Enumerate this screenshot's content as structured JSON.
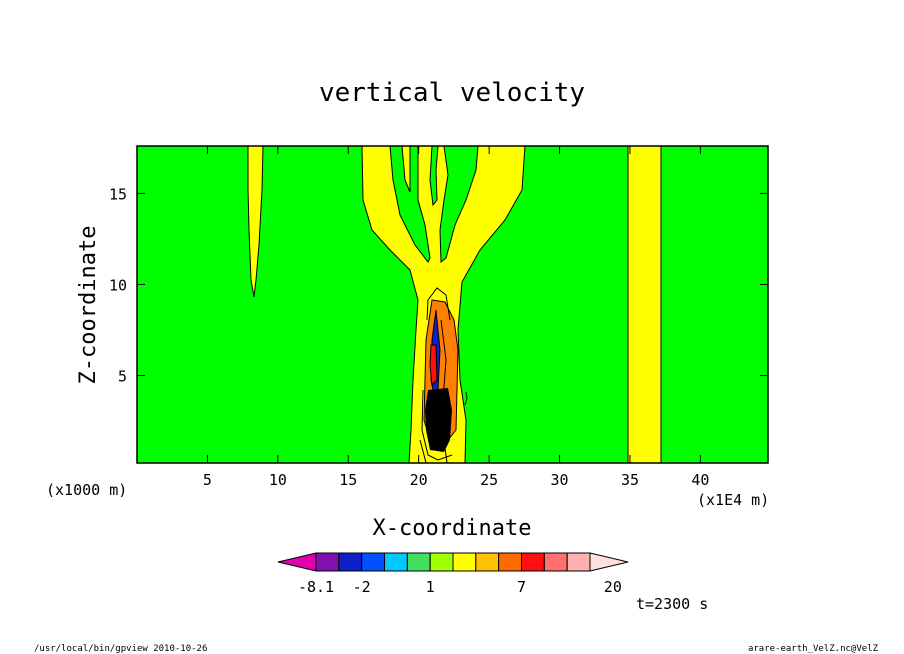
{
  "chart_data": {
    "type": "heatmap",
    "title": "vertical velocity",
    "xlabel": "X-coordinate",
    "ylabel": "Z-coordinate",
    "x_unit_label": "(x1E4 m)",
    "y_unit_label": "(x1000 m)",
    "x_ticks": [
      5,
      10,
      15,
      20,
      25,
      30,
      35,
      40
    ],
    "y_ticks": [
      5,
      10,
      15
    ],
    "xlim": [
      0,
      44.8
    ],
    "ylim": [
      0.2,
      17.6
    ],
    "time_label": "t=2300 s",
    "colorbar": {
      "labels": [
        {
          "text": "-8.1",
          "index": 1
        },
        {
          "text": "-2",
          "index": 3
        },
        {
          "text": "1",
          "index": 6
        },
        {
          "text": "7",
          "index": 10
        },
        {
          "text": "20",
          "index": 14
        }
      ],
      "colors": [
        "#e000b0",
        "#8010b0",
        "#1020c8",
        "#0050ff",
        "#00c8ff",
        "#40e060",
        "#a0ff00",
        "#ffff00",
        "#ffc000",
        "#ff6a00",
        "#ff1010",
        "#ff7070",
        "#ffb0b0",
        "#ffe0e0"
      ]
    },
    "regions": {
      "background": "#00ff00",
      "positive_weak": "#ffff00",
      "core_positive": "#ff8000",
      "core_negative": "#1020c8",
      "contour_line": "#000000"
    }
  },
  "footer": {
    "left": "/usr/local/bin/gpview  2010-10-26",
    "right": "arare-earth_VelZ.nc@VelZ"
  }
}
